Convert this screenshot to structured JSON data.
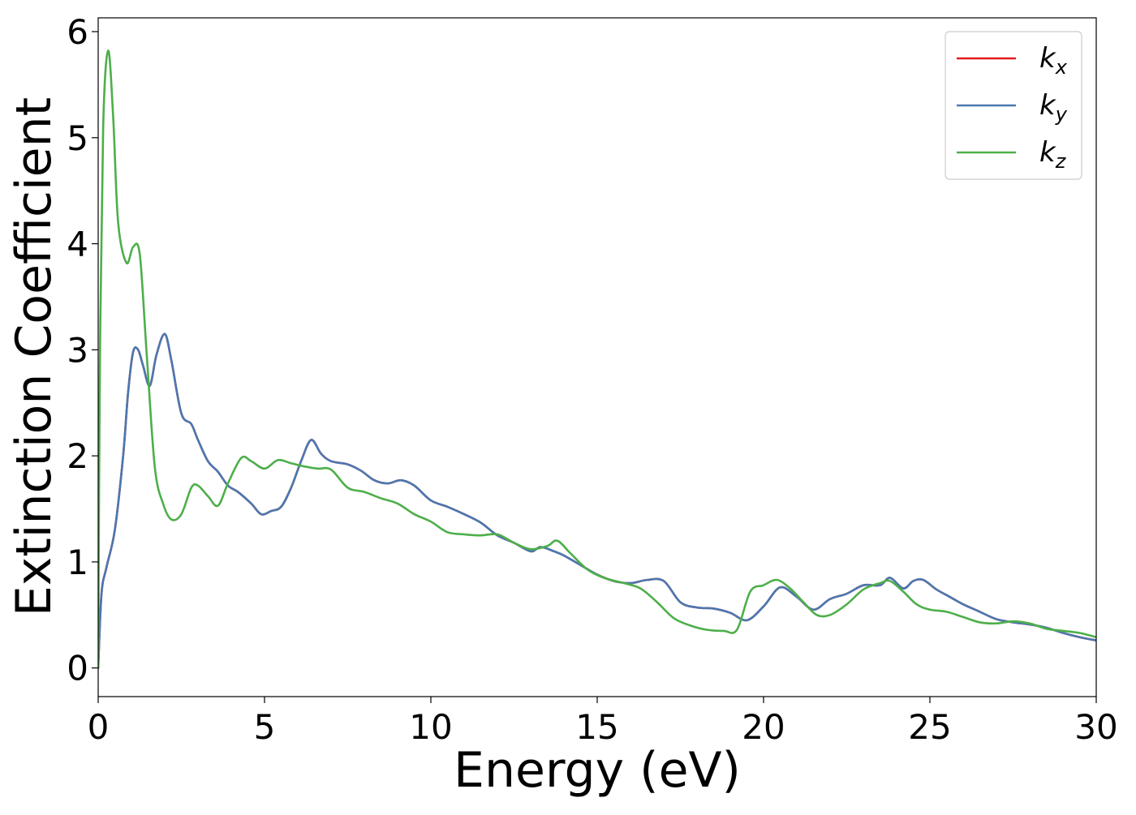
{
  "chart_data": {
    "type": "line",
    "title": "",
    "xlabel": "Energy (eV)",
    "ylabel": "Extinction Coefficient",
    "xlim": [
      0,
      30
    ],
    "ylim": [
      -0.27,
      6.13
    ],
    "xticks": [
      0,
      5,
      10,
      15,
      20,
      25,
      30
    ],
    "yticks": [
      0,
      1,
      2,
      3,
      4,
      5,
      6
    ],
    "xtick_labels": [
      "0",
      "5",
      "10",
      "15",
      "20",
      "25",
      "30"
    ],
    "ytick_labels": [
      "0",
      "1",
      "2",
      "3",
      "4",
      "5",
      "6"
    ],
    "grid": false,
    "legend": {
      "position": "top-right",
      "entries": [
        {
          "label": "k",
          "subscript": "x",
          "color": "#e41a1c"
        },
        {
          "label": "k",
          "subscript": "y",
          "color": "#4a78b0"
        },
        {
          "label": "k",
          "subscript": "z",
          "color": "#4daf4a"
        }
      ]
    },
    "series": [
      {
        "name": "kx",
        "color": "#e41a1c",
        "x": [
          0,
          0.1,
          0.25,
          0.5,
          0.75,
          0.9,
          1.05,
          1.2,
          1.35,
          1.55,
          1.75,
          2.0,
          2.2,
          2.5,
          2.8,
          3.0,
          3.3,
          3.6,
          3.9,
          4.2,
          4.6,
          4.9,
          5.2,
          5.5,
          5.8,
          6.1,
          6.4,
          6.7,
          7.0,
          7.5,
          7.9,
          8.3,
          8.7,
          9.1,
          9.5,
          10.0,
          10.5,
          11.0,
          11.5,
          12.0,
          12.5,
          13.0,
          13.3,
          13.7,
          14.0,
          14.5,
          15.0,
          15.5,
          16.0,
          16.5,
          17.0,
          17.5,
          18.0,
          18.5,
          19.0,
          19.5,
          20.0,
          20.5,
          21.0,
          21.5,
          22.0,
          22.5,
          23.0,
          23.5,
          23.8,
          24.2,
          24.5,
          24.8,
          25.2,
          25.6,
          26.0,
          26.5,
          27.0,
          27.5,
          28.0,
          28.5,
          29.0,
          29.5,
          30.0
        ],
        "y": [
          0,
          0.7,
          0.95,
          1.3,
          2.0,
          2.6,
          2.98,
          3.0,
          2.85,
          2.66,
          2.95,
          3.15,
          2.9,
          2.4,
          2.3,
          2.15,
          1.95,
          1.85,
          1.72,
          1.66,
          1.55,
          1.45,
          1.48,
          1.52,
          1.7,
          1.95,
          2.15,
          2.02,
          1.95,
          1.92,
          1.86,
          1.77,
          1.74,
          1.77,
          1.72,
          1.58,
          1.52,
          1.45,
          1.37,
          1.25,
          1.18,
          1.1,
          1.14,
          1.1,
          1.06,
          0.97,
          0.88,
          0.82,
          0.8,
          0.83,
          0.82,
          0.62,
          0.57,
          0.56,
          0.52,
          0.45,
          0.58,
          0.76,
          0.67,
          0.55,
          0.65,
          0.7,
          0.78,
          0.78,
          0.85,
          0.75,
          0.82,
          0.83,
          0.74,
          0.67,
          0.6,
          0.53,
          0.46,
          0.43,
          0.41,
          0.38,
          0.33,
          0.29,
          0.26
        ]
      },
      {
        "name": "ky",
        "color": "#4a78b0",
        "x": [
          0,
          0.1,
          0.25,
          0.5,
          0.75,
          0.9,
          1.05,
          1.2,
          1.35,
          1.55,
          1.75,
          2.0,
          2.2,
          2.5,
          2.8,
          3.0,
          3.3,
          3.6,
          3.9,
          4.2,
          4.6,
          4.9,
          5.2,
          5.5,
          5.8,
          6.1,
          6.4,
          6.7,
          7.0,
          7.5,
          7.9,
          8.3,
          8.7,
          9.1,
          9.5,
          10.0,
          10.5,
          11.0,
          11.5,
          12.0,
          12.5,
          13.0,
          13.3,
          13.7,
          14.0,
          14.5,
          15.0,
          15.5,
          16.0,
          16.5,
          17.0,
          17.5,
          18.0,
          18.5,
          19.0,
          19.5,
          20.0,
          20.5,
          21.0,
          21.5,
          22.0,
          22.5,
          23.0,
          23.5,
          23.8,
          24.2,
          24.5,
          24.8,
          25.2,
          25.6,
          26.0,
          26.5,
          27.0,
          27.5,
          28.0,
          28.5,
          29.0,
          29.5,
          30.0
        ],
        "y": [
          0,
          0.7,
          0.95,
          1.3,
          2.0,
          2.6,
          2.98,
          3.0,
          2.85,
          2.66,
          2.95,
          3.15,
          2.9,
          2.4,
          2.3,
          2.15,
          1.95,
          1.85,
          1.72,
          1.66,
          1.55,
          1.45,
          1.48,
          1.52,
          1.7,
          1.95,
          2.15,
          2.02,
          1.95,
          1.92,
          1.86,
          1.77,
          1.74,
          1.77,
          1.72,
          1.58,
          1.52,
          1.45,
          1.37,
          1.25,
          1.18,
          1.1,
          1.14,
          1.1,
          1.06,
          0.97,
          0.88,
          0.82,
          0.8,
          0.83,
          0.82,
          0.62,
          0.57,
          0.56,
          0.52,
          0.45,
          0.58,
          0.76,
          0.67,
          0.55,
          0.65,
          0.7,
          0.78,
          0.78,
          0.85,
          0.75,
          0.82,
          0.83,
          0.74,
          0.67,
          0.6,
          0.53,
          0.46,
          0.43,
          0.41,
          0.38,
          0.33,
          0.29,
          0.26
        ]
      },
      {
        "name": "kz",
        "color": "#4daf4a",
        "x": [
          0,
          0.05,
          0.15,
          0.3,
          0.45,
          0.6,
          0.85,
          1.05,
          1.25,
          1.45,
          1.7,
          1.95,
          2.2,
          2.5,
          2.8,
          3.0,
          3.3,
          3.6,
          3.9,
          4.3,
          4.6,
          5.0,
          5.4,
          5.8,
          6.2,
          6.6,
          7.0,
          7.5,
          8.0,
          8.5,
          9.0,
          9.5,
          10.0,
          10.5,
          11.0,
          11.5,
          12.0,
          12.5,
          13.0,
          13.5,
          13.8,
          14.2,
          14.7,
          15.2,
          15.8,
          16.3,
          16.8,
          17.3,
          17.8,
          18.3,
          18.8,
          19.2,
          19.6,
          20.0,
          20.4,
          20.8,
          21.2,
          21.6,
          22.0,
          22.5,
          23.0,
          23.5,
          23.8,
          24.2,
          24.6,
          25.0,
          25.5,
          26.0,
          26.5,
          27.0,
          27.5,
          28.0,
          28.5,
          29.0,
          29.5,
          30.0
        ],
        "y": [
          0,
          2.8,
          5.1,
          5.82,
          5.2,
          4.2,
          3.82,
          3.97,
          3.9,
          3.0,
          1.9,
          1.55,
          1.4,
          1.45,
          1.7,
          1.72,
          1.62,
          1.53,
          1.74,
          1.98,
          1.95,
          1.88,
          1.96,
          1.93,
          1.9,
          1.88,
          1.87,
          1.7,
          1.66,
          1.6,
          1.55,
          1.45,
          1.38,
          1.28,
          1.26,
          1.25,
          1.26,
          1.18,
          1.12,
          1.15,
          1.2,
          1.08,
          0.93,
          0.85,
          0.8,
          0.75,
          0.62,
          0.47,
          0.4,
          0.36,
          0.35,
          0.36,
          0.72,
          0.78,
          0.83,
          0.75,
          0.62,
          0.5,
          0.5,
          0.6,
          0.74,
          0.8,
          0.82,
          0.72,
          0.6,
          0.55,
          0.53,
          0.48,
          0.43,
          0.42,
          0.44,
          0.42,
          0.37,
          0.35,
          0.33,
          0.29
        ]
      }
    ]
  }
}
